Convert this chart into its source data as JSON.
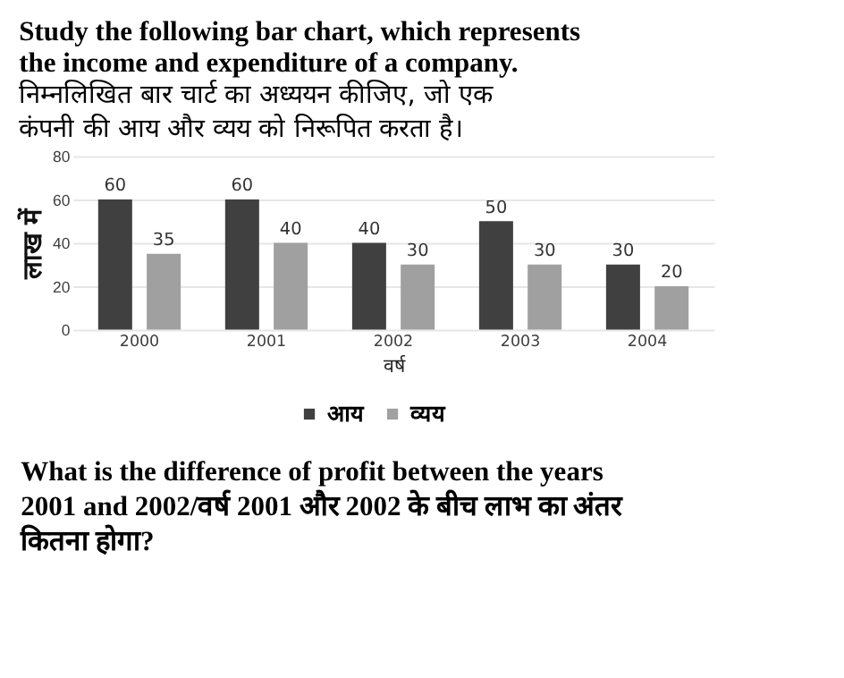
{
  "chart_data": {
    "type": "bar",
    "title": "Study the following bar chart, which represents the income and expenditure of a company.",
    "subtitle": "निम्नलिखित बार चार्ट का अध्ययन कीजिए, जो एक कंपनी की आय और व्यय को निरूपित करता है।",
    "xlabel": "वर्ष",
    "ylabel": "लाख में",
    "categories": [
      "2000",
      "2001",
      "2002",
      "2003",
      "2004"
    ],
    "series": [
      {
        "name": "आय",
        "color": "#404040",
        "values": [
          60,
          60,
          40,
          50,
          30
        ]
      },
      {
        "name": "व्यय",
        "color": "#a0a0a0",
        "values": [
          35,
          40,
          30,
          30,
          20
        ]
      }
    ],
    "ylim": [
      0,
      80
    ],
    "yticks": [
      0,
      20,
      40,
      60,
      80
    ],
    "grid": "y",
    "legend": "bottom",
    "data_labels": true,
    "annotations": [
      "What is the difference of profit between the years 2001 and 2002/वर्ष 2001 और 2002 के बीच लाभ का अंतर कितना होगा?"
    ]
  }
}
